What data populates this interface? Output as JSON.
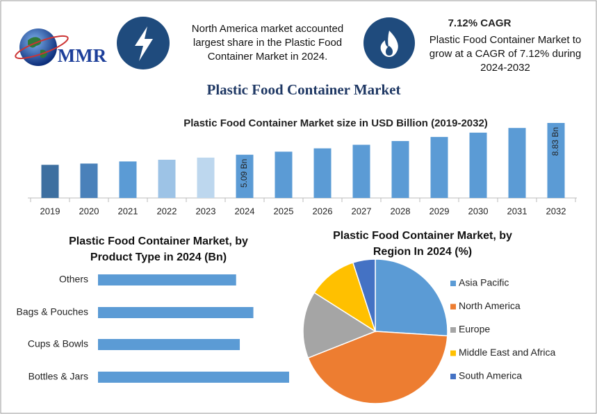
{
  "header": {
    "logo": "MMR",
    "fact": "North America market accounted largest share in the Plastic Food Container Market in 2024.",
    "cagr_title": "7.12% CAGR",
    "cagr_text": "Plastic Food Container Market to grow at a CAGR of 7.12% during 2024-2032"
  },
  "title": "Plastic Food Container Market",
  "chart_data": [
    {
      "type": "bar",
      "title": "Plastic Food Container Market size in USD Billion (2019-2032)",
      "categories": [
        "2019",
        "2020",
        "2021",
        "2022",
        "2023",
        "2024",
        "2025",
        "2026",
        "2027",
        "2028",
        "2029",
        "2030",
        "2031",
        "2032"
      ],
      "values": [
        3.9,
        4.05,
        4.3,
        4.5,
        4.75,
        5.09,
        5.45,
        5.84,
        6.26,
        6.7,
        7.18,
        7.69,
        8.24,
        8.83
      ],
      "value_labels": [
        null,
        null,
        null,
        null,
        null,
        "5.09 Bn",
        null,
        null,
        null,
        null,
        null,
        null,
        null,
        "8.83 Bn"
      ],
      "colors": [
        "#3d6fa0",
        "#4a81ba",
        "#5b9bd5",
        "#9dc3e6",
        "#bdd7ee",
        "#5b9bd5",
        "#5b9bd5",
        "#5b9bd5",
        "#5b9bd5",
        "#5b9bd5",
        "#5b9bd5",
        "#5b9bd5",
        "#5b9bd5",
        "#5b9bd5"
      ]
    },
    {
      "type": "bar",
      "horizontal": true,
      "title": "Plastic Food Container Market, by Product Type in 2024 (Bn)",
      "categories": [
        "Others",
        "Bags & Pouches",
        "Cups & Bowls",
        "Bottles & Jars"
      ],
      "values": [
        1.12,
        1.26,
        1.15,
        1.55
      ],
      "color": "#5b9bd5"
    },
    {
      "type": "pie",
      "title": "Plastic Food Container Market, by Region In 2024 (%)",
      "series": [
        {
          "name": "Asia Pacific",
          "color": "#5b9bd5",
          "values": [
            26
          ]
        },
        {
          "name": "North America",
          "color": "#ed7d31",
          "values": [
            43
          ]
        },
        {
          "name": "Europe",
          "color": "#a5a5a5",
          "values": [
            15
          ]
        },
        {
          "name": "Middle East and Africa",
          "color": "#ffc000",
          "values": [
            11
          ]
        },
        {
          "name": "South America",
          "color": "#4472c4",
          "values": [
            5
          ]
        }
      ]
    }
  ]
}
